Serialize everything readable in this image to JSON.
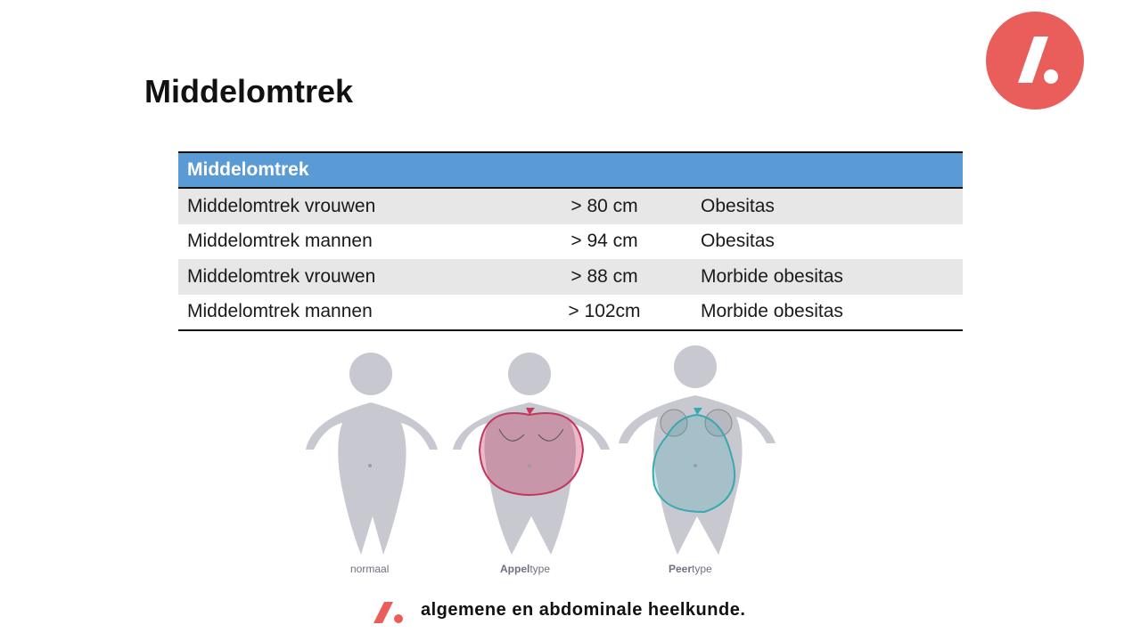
{
  "slide": {
    "title": "Middelomtrek"
  },
  "logo": {
    "icon": "slash-dot-logo-icon",
    "color": "#e95e5a"
  },
  "table": {
    "header": "Middelomtrek",
    "header_color": "#5b9bd5",
    "rows": [
      {
        "label": "Middelomtrek vrouwen",
        "value": "> 80 cm",
        "category": "Obesitas"
      },
      {
        "label": "Middelomtrek mannen",
        "value": "> 94 cm",
        "category": "Obesitas"
      },
      {
        "label": "Middelomtrek vrouwen",
        "value": "> 88 cm",
        "category": "Morbide obesitas"
      },
      {
        "label": "Middelomtrek mannen",
        "value": "> 102cm",
        "category": "Morbide obesitas"
      }
    ]
  },
  "figures": {
    "captions": [
      {
        "prefix": "",
        "text": "normaal"
      },
      {
        "prefix": "Appel",
        "text": "type"
      },
      {
        "prefix": "Peer",
        "text": "type"
      }
    ],
    "apple_color": "#c5365f",
    "pear_color": "#3aa8b1"
  },
  "footer": {
    "text": "algemene en abdominale  heelkunde."
  }
}
